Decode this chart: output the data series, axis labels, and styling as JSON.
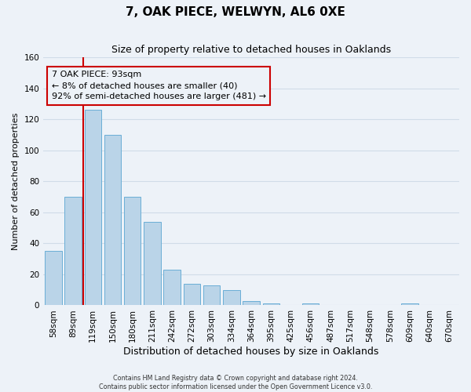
{
  "title": "7, OAK PIECE, WELWYN, AL6 0XE",
  "subtitle": "Size of property relative to detached houses in Oaklands",
  "xlabel": "Distribution of detached houses by size in Oaklands",
  "ylabel": "Number of detached properties",
  "bar_labels": [
    "58sqm",
    "89sqm",
    "119sqm",
    "150sqm",
    "180sqm",
    "211sqm",
    "242sqm",
    "272sqm",
    "303sqm",
    "334sqm",
    "364sqm",
    "395sqm",
    "425sqm",
    "456sqm",
    "487sqm",
    "517sqm",
    "548sqm",
    "578sqm",
    "609sqm",
    "640sqm",
    "670sqm"
  ],
  "bar_values": [
    35,
    70,
    126,
    110,
    70,
    54,
    23,
    14,
    13,
    10,
    3,
    1,
    0,
    1,
    0,
    0,
    0,
    0,
    1,
    0,
    0
  ],
  "bar_color": "#bad4e8",
  "bar_edge_color": "#6aaed6",
  "vline_x": 1.5,
  "vline_color": "#cc0000",
  "annotation_box_text": "7 OAK PIECE: 93sqm\n← 8% of detached houses are smaller (40)\n92% of semi-detached houses are larger (481) →",
  "annotation_box_edgecolor": "#cc0000",
  "ylim": [
    0,
    160
  ],
  "yticks": [
    0,
    20,
    40,
    60,
    80,
    100,
    120,
    140,
    160
  ],
  "footer_line1": "Contains HM Land Registry data © Crown copyright and database right 2024.",
  "footer_line2": "Contains public sector information licensed under the Open Government Licence v3.0.",
  "background_color": "#edf2f8",
  "grid_color": "#d0dce8",
  "title_fontsize": 11,
  "subtitle_fontsize": 9,
  "xlabel_fontsize": 9,
  "ylabel_fontsize": 8,
  "tick_fontsize": 7.5,
  "annot_fontsize": 8
}
